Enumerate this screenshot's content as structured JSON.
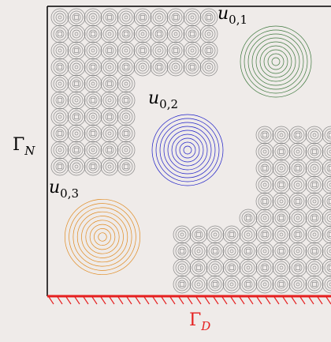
{
  "labels": {
    "u01": {
      "main": "u",
      "sub": "0,1"
    },
    "u02": {
      "main": "u",
      "sub": "0,2"
    },
    "u03": {
      "main": "u",
      "sub": "0,3"
    },
    "gamma_n": {
      "main": "Γ",
      "sub": "N"
    },
    "gamma_d": {
      "main": "Γ",
      "sub": "D"
    }
  }
}
